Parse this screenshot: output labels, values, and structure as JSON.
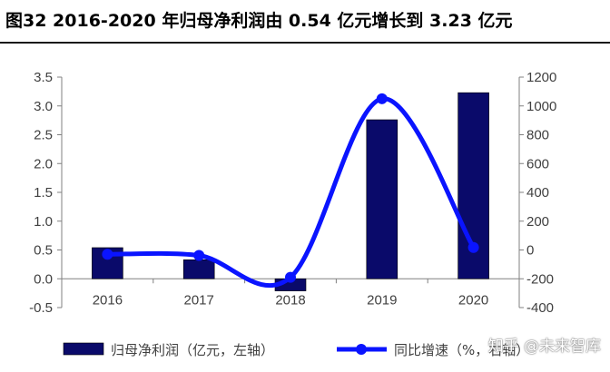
{
  "figure_title": "图32 2016-2020 年归母净利润由 0.54 亿元增长到 3.23 亿元",
  "watermark": "知乎 @未来智库",
  "colors": {
    "bar": "#0a0a6a",
    "line": "#0a14ff",
    "axis": "#808080",
    "text": "#404040"
  },
  "chart_data": {
    "type": "bar",
    "categories": [
      "2016",
      "2017",
      "2018",
      "2019",
      "2020"
    ],
    "series": [
      {
        "name": "归母净利润（亿元，左轴）",
        "type": "bar",
        "axis": "left",
        "values": [
          0.54,
          0.33,
          -0.21,
          2.76,
          3.23
        ]
      },
      {
        "name": "同比增速（%，右轴）",
        "type": "line",
        "axis": "right",
        "values": [
          -30,
          -38,
          -190,
          1050,
          17
        ]
      }
    ],
    "y_left": {
      "min": -0.5,
      "max": 3.5,
      "ticks": [
        "3.5",
        "3.0",
        "2.5",
        "2.0",
        "1.5",
        "1.0",
        "0.5",
        "0.0",
        "-0.5"
      ]
    },
    "y_right": {
      "min": -400,
      "max": 1200,
      "ticks": [
        "1200",
        "1000",
        "800",
        "600",
        "400",
        "200",
        "0",
        "-200",
        "-400"
      ]
    },
    "legend_position": "bottom",
    "grid": false
  }
}
